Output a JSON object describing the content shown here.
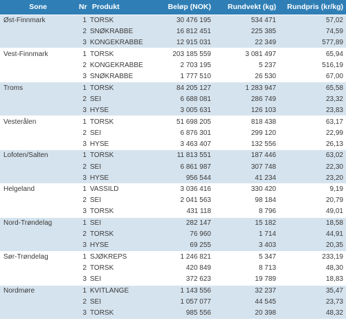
{
  "headers": {
    "sone": "Sone",
    "nr": "Nr",
    "produkt": "Produkt",
    "belop": "Beløp (NOK)",
    "rundvekt": "Rundvekt (kg)",
    "rundpris": "Rundpris (kr/kg)"
  },
  "zones": [
    {
      "name": "Øst-Finnmark",
      "shaded": true,
      "rows": [
        {
          "nr": "1",
          "produkt": "TORSK",
          "belop": "30 476 195",
          "rundvekt": "534 471",
          "rundpris": "57,02"
        },
        {
          "nr": "2",
          "produkt": "SNØKRABBE",
          "belop": "16 812 451",
          "rundvekt": "225 385",
          "rundpris": "74,59"
        },
        {
          "nr": "3",
          "produkt": "KONGEKRABBE",
          "belop": "12 915 031",
          "rundvekt": "22 349",
          "rundpris": "577,89"
        }
      ]
    },
    {
      "name": "Vest-Finnmark",
      "shaded": false,
      "rows": [
        {
          "nr": "1",
          "produkt": "TORSK",
          "belop": "203 185 559",
          "rundvekt": "3 081 497",
          "rundpris": "65,94"
        },
        {
          "nr": "2",
          "produkt": "KONGEKRABBE",
          "belop": "2 703 195",
          "rundvekt": "5 237",
          "rundpris": "516,19"
        },
        {
          "nr": "3",
          "produkt": "SNØKRABBE",
          "belop": "1 777 510",
          "rundvekt": "26 530",
          "rundpris": "67,00"
        }
      ]
    },
    {
      "name": "Troms",
      "shaded": true,
      "rows": [
        {
          "nr": "1",
          "produkt": "TORSK",
          "belop": "84 205 127",
          "rundvekt": "1 283 947",
          "rundpris": "65,58"
        },
        {
          "nr": "2",
          "produkt": "SEI",
          "belop": "6 688 081",
          "rundvekt": "286 749",
          "rundpris": "23,32"
        },
        {
          "nr": "3",
          "produkt": "HYSE",
          "belop": "3 005 631",
          "rundvekt": "126 103",
          "rundpris": "23,83"
        }
      ]
    },
    {
      "name": "Vesterålen",
      "shaded": false,
      "rows": [
        {
          "nr": "1",
          "produkt": "TORSK",
          "belop": "51 698 205",
          "rundvekt": "818 438",
          "rundpris": "63,17"
        },
        {
          "nr": "2",
          "produkt": "SEI",
          "belop": "6 876 301",
          "rundvekt": "299 120",
          "rundpris": "22,99"
        },
        {
          "nr": "3",
          "produkt": "HYSE",
          "belop": "3 463 407",
          "rundvekt": "132 556",
          "rundpris": "26,13"
        }
      ]
    },
    {
      "name": "Lofoten/Salten",
      "shaded": true,
      "rows": [
        {
          "nr": "1",
          "produkt": "TORSK",
          "belop": "11 813 551",
          "rundvekt": "187 446",
          "rundpris": "63,02"
        },
        {
          "nr": "2",
          "produkt": "SEI",
          "belop": "6 861 987",
          "rundvekt": "307 748",
          "rundpris": "22,30"
        },
        {
          "nr": "3",
          "produkt": "HYSE",
          "belop": "956 544",
          "rundvekt": "41 234",
          "rundpris": "23,20"
        }
      ]
    },
    {
      "name": "Helgeland",
      "shaded": false,
      "rows": [
        {
          "nr": "1",
          "produkt": "VASSILD",
          "belop": "3 036 416",
          "rundvekt": "330 420",
          "rundpris": "9,19"
        },
        {
          "nr": "2",
          "produkt": "SEI",
          "belop": "2 041 563",
          "rundvekt": "98 184",
          "rundpris": "20,79"
        },
        {
          "nr": "3",
          "produkt": "TORSK",
          "belop": "431 118",
          "rundvekt": "8 796",
          "rundpris": "49,01"
        }
      ]
    },
    {
      "name": "Nord-Trøndelag",
      "shaded": true,
      "rows": [
        {
          "nr": "1",
          "produkt": "SEI",
          "belop": "282 147",
          "rundvekt": "15 182",
          "rundpris": "18,58"
        },
        {
          "nr": "2",
          "produkt": "TORSK",
          "belop": "76 960",
          "rundvekt": "1 714",
          "rundpris": "44,91"
        },
        {
          "nr": "3",
          "produkt": "HYSE",
          "belop": "69 255",
          "rundvekt": "3 403",
          "rundpris": "20,35"
        }
      ]
    },
    {
      "name": "Sør-Trøndelag",
      "shaded": false,
      "rows": [
        {
          "nr": "1",
          "produkt": "SJØKREPS",
          "belop": "1 246 821",
          "rundvekt": "5 347",
          "rundpris": "233,19"
        },
        {
          "nr": "2",
          "produkt": "TORSK",
          "belop": "420 849",
          "rundvekt": "8 713",
          "rundpris": "48,30"
        },
        {
          "nr": "3",
          "produkt": "SEI",
          "belop": "372 623",
          "rundvekt": "19 789",
          "rundpris": "18,83"
        }
      ]
    },
    {
      "name": "Nordmøre",
      "shaded": true,
      "rows": [
        {
          "nr": "1",
          "produkt": "KVITLANGE",
          "belop": "1 143 556",
          "rundvekt": "32 237",
          "rundpris": "35,47"
        },
        {
          "nr": "2",
          "produkt": "SEI",
          "belop": "1 057 077",
          "rundvekt": "44 545",
          "rundpris": "23,73"
        },
        {
          "nr": "3",
          "produkt": "TORSK",
          "belop": "985 556",
          "rundvekt": "20 398",
          "rundpris": "48,32"
        }
      ]
    }
  ]
}
